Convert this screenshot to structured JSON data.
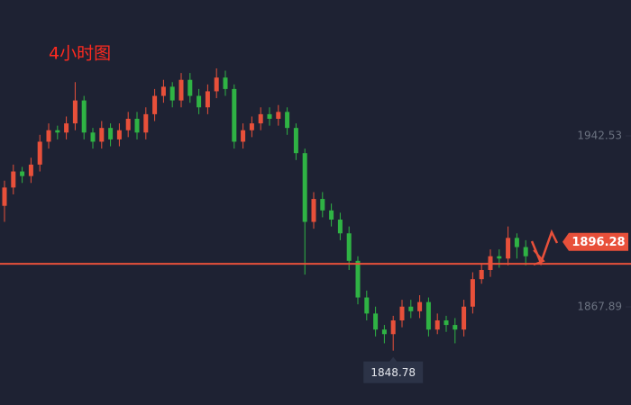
{
  "chart_data": {
    "type": "candlestick",
    "title": "4小时图",
    "ylim": [
      1825.07,
      2001.85
    ],
    "yticks": [
      1942.53,
      1867.89
    ],
    "up_color": "#e8503a",
    "down_color": "#2fb344",
    "level_line": 1886.7,
    "level_color": "#e8503a",
    "price_marker": 1896.28,
    "low_marker_index": 44,
    "open": [
      1912,
      1920,
      1927,
      1925,
      1930,
      1940,
      1945,
      1944,
      1948,
      1958,
      1944,
      1940,
      1946,
      1941,
      1945,
      1950,
      1944,
      1952,
      1960,
      1964,
      1958,
      1967,
      1960,
      1955,
      1962,
      1968,
      1963,
      1940,
      1945,
      1948,
      1952,
      1950,
      1953,
      1946,
      1935,
      1905,
      1915,
      1910,
      1906,
      1900,
      1888,
      1872,
      1865,
      1858,
      1856,
      1862,
      1868,
      1866,
      1870,
      1858,
      1862,
      1860,
      1858,
      1868,
      1880,
      1884,
      1890,
      1889,
      1898,
      1894
    ],
    "high": [
      1923,
      1930,
      1929,
      1933,
      1943,
      1948,
      1947,
      1951,
      1966,
      1960,
      1946,
      1949,
      1948,
      1948,
      1953,
      1953,
      1955,
      1963,
      1967,
      1966,
      1970,
      1970,
      1963,
      1965,
      1972,
      1971,
      1965,
      1948,
      1951,
      1955,
      1955,
      1956,
      1955,
      1948,
      1937,
      1918,
      1918,
      1913,
      1909,
      1903,
      1890,
      1875,
      1868,
      1860,
      1864,
      1871,
      1871,
      1873,
      1872,
      1865,
      1864,
      1863,
      1871,
      1883,
      1887,
      1893,
      1893,
      1903,
      1900,
      1897
    ],
    "low": [
      1905,
      1917,
      1922,
      1922,
      1927,
      1937,
      1941,
      1941,
      1945,
      1941,
      1937,
      1937,
      1938,
      1938,
      1942,
      1941,
      1941,
      1949,
      1957,
      1955,
      1955,
      1957,
      1952,
      1952,
      1959,
      1960,
      1937,
      1937,
      1942,
      1945,
      1947,
      1947,
      1943,
      1932,
      1882,
      1902,
      1907,
      1903,
      1897,
      1884,
      1869,
      1862,
      1855,
      1852,
      1848.78,
      1859,
      1863,
      1863,
      1855,
      1856,
      1857,
      1852,
      1855,
      1865,
      1878,
      1881,
      1885,
      1886,
      1889,
      1886
    ],
    "close": [
      1920,
      1927,
      1925,
      1930,
      1940,
      1945,
      1944,
      1948,
      1958,
      1944,
      1940,
      1946,
      1941,
      1945,
      1950,
      1944,
      1952,
      1960,
      1964,
      1958,
      1967,
      1960,
      1955,
      1962,
      1968,
      1963,
      1940,
      1945,
      1948,
      1952,
      1950,
      1953,
      1946,
      1935,
      1905,
      1915,
      1910,
      1906,
      1900,
      1888,
      1872,
      1865,
      1858,
      1856,
      1862,
      1868,
      1866,
      1870,
      1858,
      1862,
      1860,
      1858,
      1868,
      1880,
      1884,
      1890,
      1889,
      1898,
      1894,
      1890
    ]
  }
}
